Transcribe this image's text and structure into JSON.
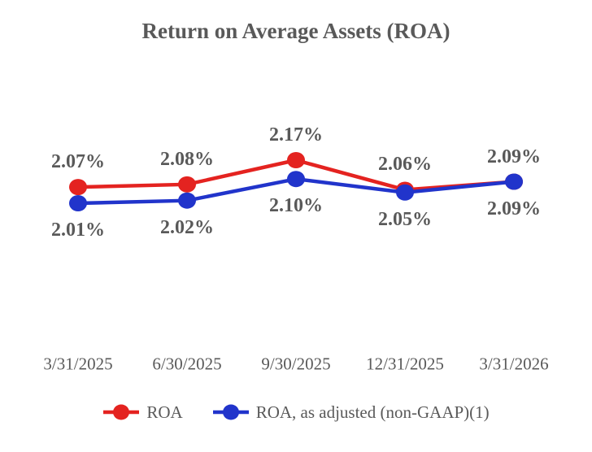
{
  "title": "Return on Average Assets (ROA)",
  "colors": {
    "roa_red": "#e42320",
    "roa_adjusted_blue": "#2134cb",
    "text_gray": "#595959",
    "background": "#ffffff"
  },
  "chart_data": {
    "type": "line",
    "title": "Return on Average Assets (ROA)",
    "categories": [
      "3/31/2025",
      "6/30/2025",
      "9/30/2025",
      "12/31/2025",
      "3/31/2026"
    ],
    "series": [
      {
        "name": "ROA",
        "color": "#e42320",
        "values": [
          2.07,
          2.08,
          2.17,
          2.06,
          2.09
        ],
        "labels": [
          "2.07%",
          "2.08%",
          "2.17%",
          "2.06%",
          "2.09%"
        ],
        "label_position": "above"
      },
      {
        "name": "ROA, as adjusted (non-GAAP)(1)",
        "color": "#2134cb",
        "values": [
          2.01,
          2.02,
          2.1,
          2.05,
          2.09
        ],
        "labels": [
          "2.01%",
          "2.02%",
          "2.10%",
          "2.05%",
          "2.09%"
        ],
        "label_position": "below"
      }
    ],
    "xlabel": "",
    "ylabel": "",
    "value_unit": "%",
    "axes_hidden": true,
    "grid": false,
    "legend_position": "bottom"
  }
}
